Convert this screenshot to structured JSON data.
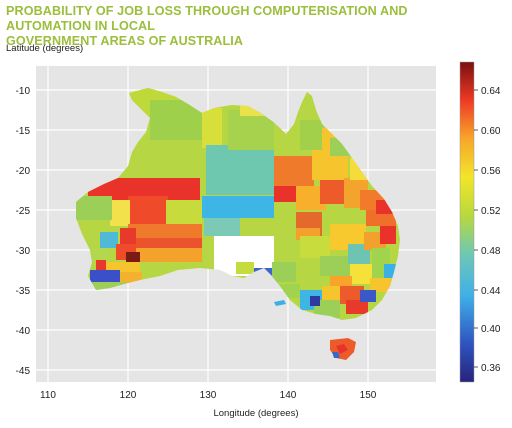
{
  "title_line1": "PROBABILITY OF JOB LOSS THROUGH COMPUTERISATION AND AUTOMATION IN LOCAL",
  "title_line2": "GOVERNMENT AREAS OF AUSTRALIA",
  "y_axis_label": "Latitude (degrees)",
  "x_axis_label": "Longitude (degrees)",
  "y_ticks": [
    "-10",
    "-15",
    "-20",
    "-25",
    "-30",
    "-35",
    "-40",
    "-45"
  ],
  "x_ticks": [
    "110",
    "120",
    "130",
    "140",
    "150"
  ],
  "colorbar_ticks": [
    "0.64",
    "0.60",
    "0.56",
    "0.52",
    "0.48",
    "0.44",
    "0.40",
    "0.36"
  ],
  "colors": {
    "title": "#9bbe3c",
    "plot_background": "#e5e5e5",
    "gridline": "#ffffff"
  }
}
